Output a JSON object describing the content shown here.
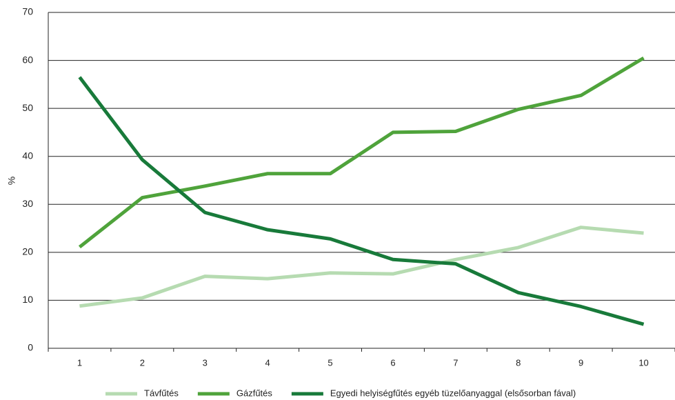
{
  "chart_data": {
    "type": "line",
    "y_label": "%",
    "categories": [
      "1",
      "2",
      "3",
      "4",
      "5",
      "6",
      "7",
      "8",
      "9",
      "10"
    ],
    "series": [
      {
        "name": "Távfűtés",
        "color": "#b6dbb1",
        "values": [
          8.8,
          10.5,
          15,
          14.5,
          15.7,
          15.5,
          18.5,
          21,
          25.2,
          24
        ]
      },
      {
        "name": "Gázfűtés",
        "color": "#4fa33b",
        "values": [
          21.1,
          31.4,
          33.8,
          36.4,
          36.4,
          45,
          45.2,
          49.8,
          52.7,
          60.5
        ]
      },
      {
        "name": "Egyedi helyiségfűtés egyéb tüzelőanyaggal (elsősorban fával)",
        "color": "#187a3a",
        "values": [
          56.5,
          39.3,
          28.3,
          24.7,
          22.8,
          18.5,
          17.6,
          11.6,
          8.7,
          5
        ]
      }
    ],
    "ylim": [
      0,
      70
    ],
    "yticks": [
      0,
      10,
      20,
      30,
      40,
      50,
      60,
      70
    ],
    "grid": true,
    "legend": "bottom"
  }
}
